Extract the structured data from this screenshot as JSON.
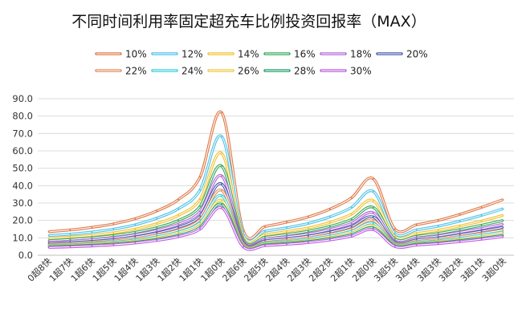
{
  "chart_data": {
    "type": "line",
    "title": "不同时间利用率固定超充车比例投资回报率（MAX）",
    "xlabel": "",
    "ylabel": "",
    "ylim": [
      0,
      90
    ],
    "yticks": [
      "0.0",
      "10.0",
      "20.0",
      "30.0",
      "40.0",
      "50.0",
      "60.0",
      "70.0",
      "80.0",
      "90.0"
    ],
    "grid": true,
    "legend_position": "top",
    "categories": [
      "0超8快",
      "1超7快",
      "1超6快",
      "1超5快",
      "1超4快",
      "1超3快",
      "1超2快",
      "1超1快",
      "1超0快",
      "2超6快",
      "2超5快",
      "2超4快",
      "2超3快",
      "2超2快",
      "2超1快",
      "2超0快",
      "3超5快",
      "3超4快",
      "3超3快",
      "3超2快",
      "3超1快",
      "3超0快"
    ],
    "series": [
      {
        "name": "10%",
        "color": "#e07b4a",
        "values": [
          13.5,
          14.5,
          16.0,
          18.0,
          21.0,
          25.5,
          32.0,
          45.0,
          82.0,
          14.0,
          16.5,
          19.0,
          22.0,
          26.5,
          33.0,
          44.0,
          15.0,
          17.5,
          20.0,
          23.5,
          27.5,
          32.0
        ]
      },
      {
        "name": "12%",
        "color": "#4fc3e8",
        "values": [
          11.3,
          12.1,
          13.3,
          15.0,
          17.5,
          21.3,
          26.7,
          37.5,
          68.3,
          11.7,
          13.8,
          15.8,
          18.3,
          22.1,
          27.5,
          36.7,
          12.5,
          14.6,
          16.7,
          19.6,
          22.9,
          26.7
        ]
      },
      {
        "name": "14%",
        "color": "#f2c232",
        "values": [
          9.6,
          10.4,
          11.4,
          12.9,
          15.0,
          18.2,
          22.9,
          32.1,
          58.6,
          10.0,
          11.8,
          13.6,
          15.7,
          18.9,
          23.6,
          31.4,
          10.7,
          12.5,
          14.3,
          16.8,
          19.6,
          22.9
        ]
      },
      {
        "name": "16%",
        "color": "#3aaa5c",
        "values": [
          8.4,
          9.1,
          10.0,
          11.3,
          13.1,
          15.9,
          20.0,
          28.1,
          51.3,
          8.8,
          10.3,
          11.9,
          13.8,
          16.6,
          20.6,
          27.5,
          9.4,
          10.9,
          12.5,
          14.7,
          17.2,
          20.0
        ]
      },
      {
        "name": "18%",
        "color": "#b468d8",
        "values": [
          7.5,
          8.1,
          8.9,
          10.0,
          11.7,
          14.2,
          17.8,
          25.0,
          45.6,
          7.8,
          9.2,
          10.6,
          12.2,
          14.7,
          18.3,
          24.4,
          8.3,
          9.7,
          11.1,
          13.1,
          15.3,
          17.8
        ]
      },
      {
        "name": "20%",
        "color": "#4a5fb0",
        "values": [
          6.8,
          7.3,
          8.0,
          9.0,
          10.5,
          12.8,
          16.0,
          22.5,
          41.0,
          7.0,
          8.3,
          9.5,
          11.0,
          13.3,
          16.5,
          22.0,
          7.5,
          8.8,
          10.0,
          11.8,
          13.8,
          16.0
        ]
      },
      {
        "name": "22%",
        "color": "#e6915e",
        "values": [
          6.1,
          6.6,
          7.3,
          8.2,
          9.5,
          11.6,
          14.5,
          20.5,
          37.3,
          6.4,
          7.5,
          8.6,
          10.0,
          12.0,
          15.0,
          20.0,
          6.8,
          8.0,
          9.1,
          10.7,
          12.5,
          14.5
        ]
      },
      {
        "name": "24%",
        "color": "#3fd0d8",
        "values": [
          5.6,
          6.0,
          6.7,
          7.5,
          8.8,
          10.6,
          13.3,
          18.8,
          34.2,
          5.8,
          6.9,
          7.9,
          9.2,
          11.0,
          13.8,
          18.3,
          6.3,
          7.3,
          8.3,
          9.8,
          11.5,
          13.3
        ]
      },
      {
        "name": "26%",
        "color": "#f0c84a",
        "values": [
          5.2,
          5.6,
          6.2,
          6.9,
          8.1,
          9.8,
          12.3,
          17.3,
          31.5,
          5.4,
          6.3,
          7.3,
          8.5,
          10.2,
          12.7,
          16.9,
          5.8,
          6.7,
          7.7,
          9.0,
          10.6,
          12.3
        ]
      },
      {
        "name": "28%",
        "color": "#22a36b",
        "values": [
          4.8,
          5.2,
          5.7,
          6.4,
          7.5,
          9.1,
          11.4,
          16.1,
          29.3,
          5.0,
          5.9,
          6.8,
          7.9,
          9.5,
          11.8,
          15.7,
          5.4,
          6.3,
          7.1,
          8.4,
          9.8,
          11.4
        ]
      },
      {
        "name": "30%",
        "color": "#c060e0",
        "values": [
          4.5,
          4.8,
          5.3,
          6.0,
          7.0,
          8.5,
          10.7,
          15.0,
          27.3,
          4.7,
          5.5,
          6.3,
          7.3,
          8.8,
          11.0,
          14.7,
          5.0,
          5.8,
          6.7,
          7.8,
          9.2,
          10.7
        ]
      }
    ]
  }
}
